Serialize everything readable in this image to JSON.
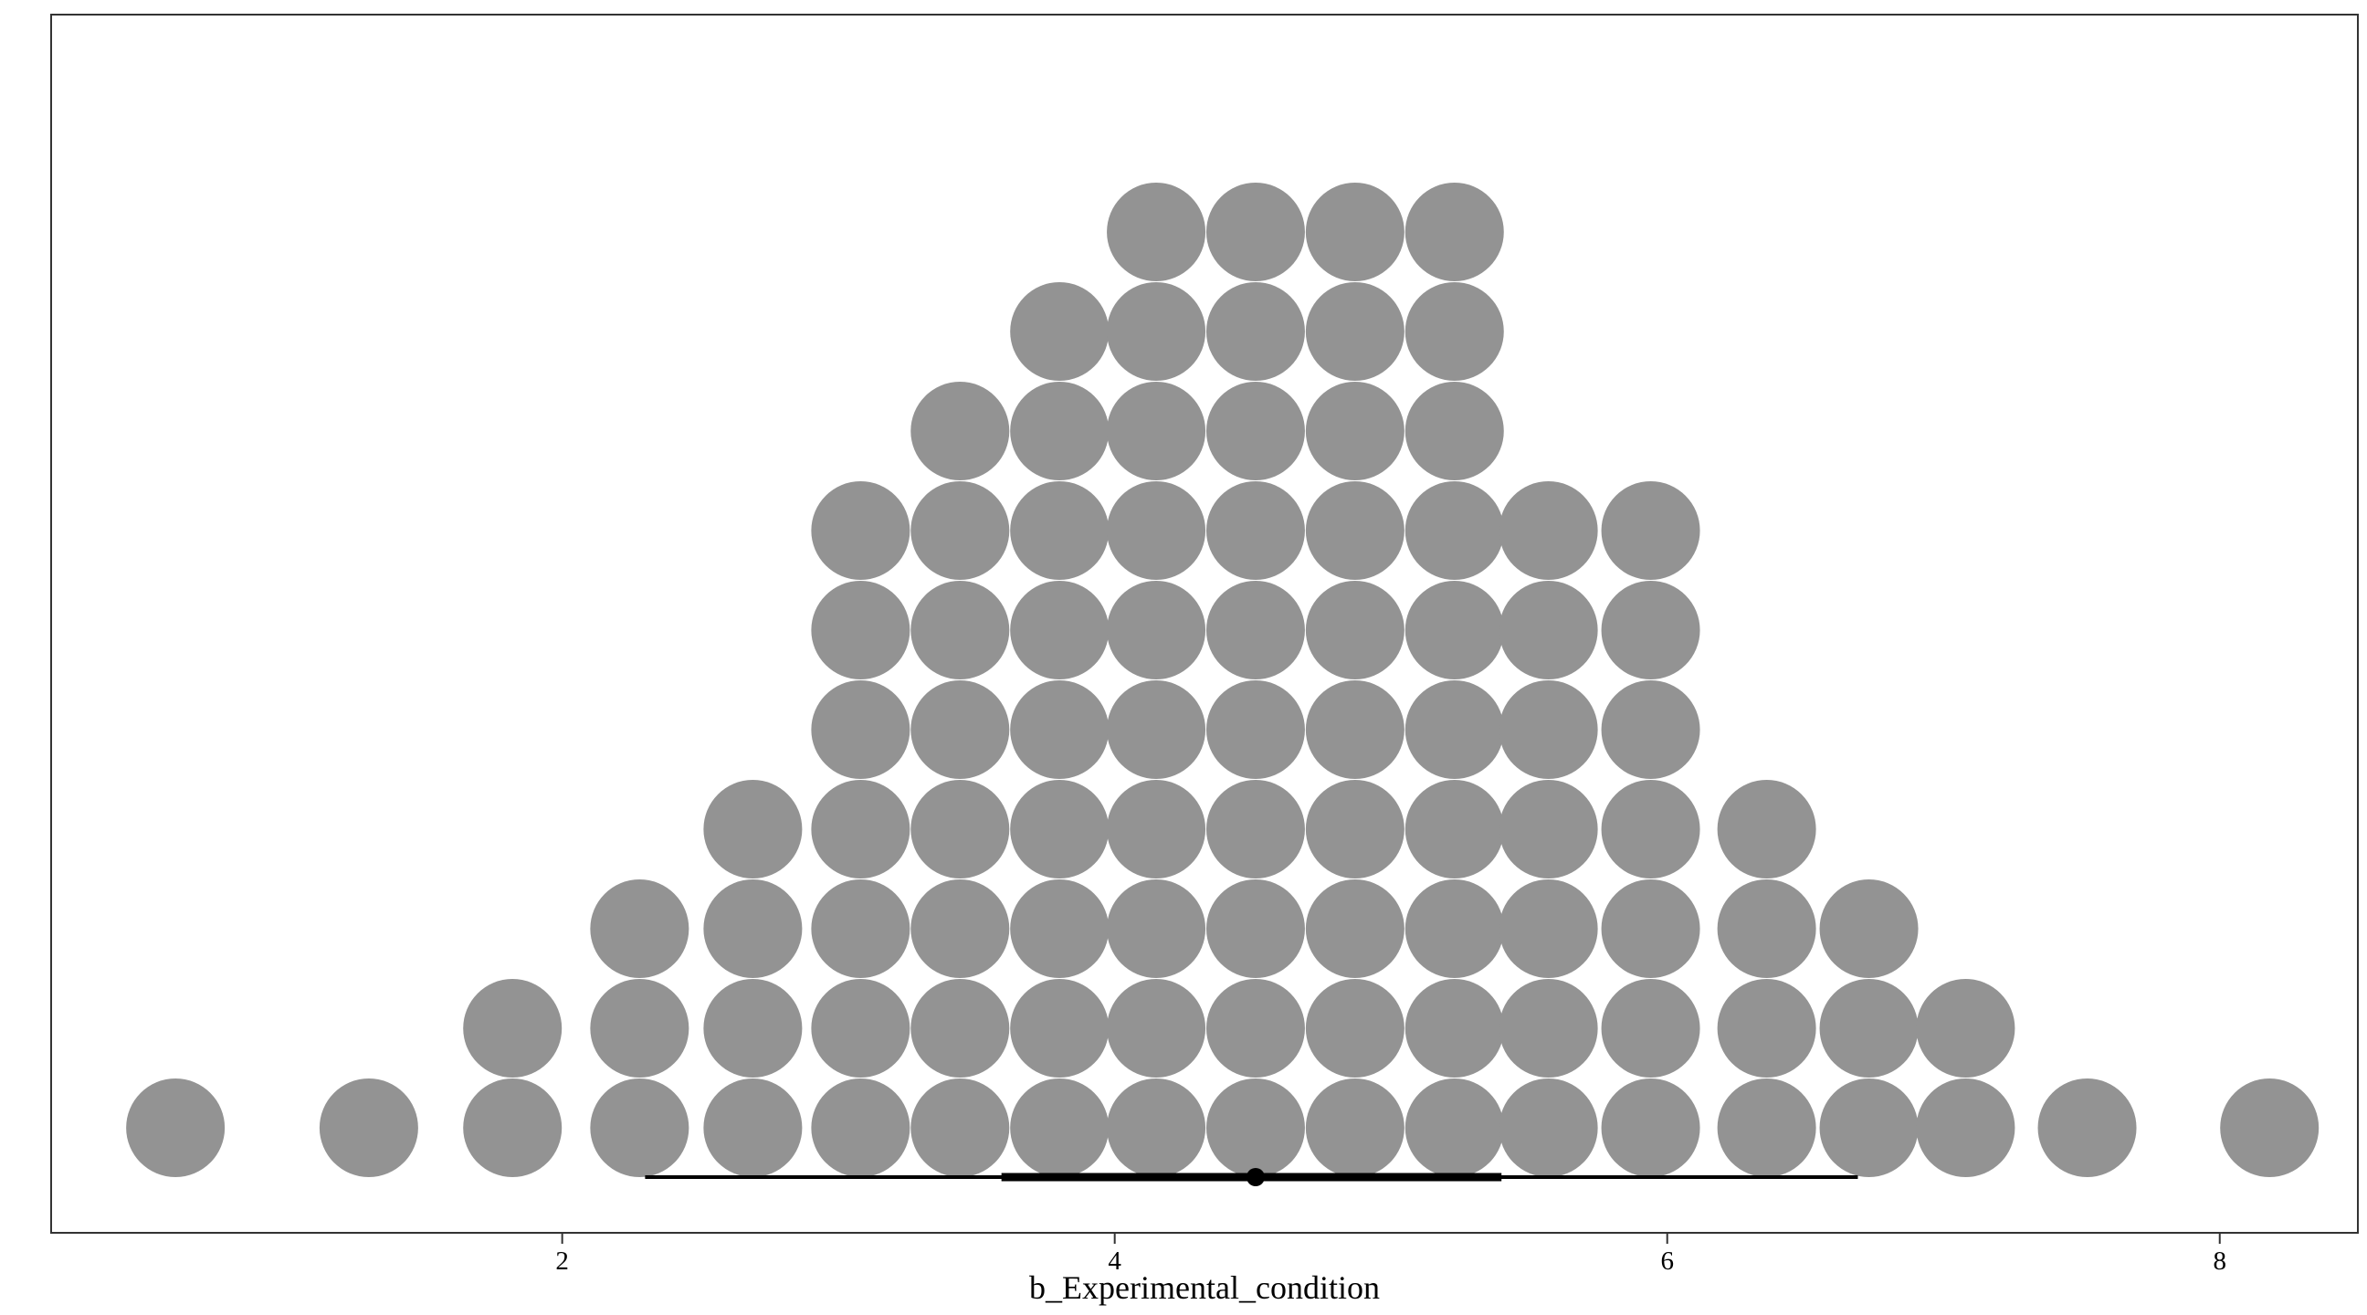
{
  "chart_data": {
    "type": "dotplot",
    "xlabel": "b_Experimental_condition",
    "xlim": [
      0.15,
      8.5
    ],
    "x_ticks": [
      2,
      4,
      6,
      8
    ],
    "x_tick_labels": [
      "2",
      "4",
      "6",
      "8"
    ],
    "grid": false,
    "dot_color": "#939393",
    "interval_color": "#000000",
    "columns": [
      {
        "x": 0.6,
        "count": 1
      },
      {
        "x": 1.3,
        "count": 1
      },
      {
        "x": 1.82,
        "count": 2
      },
      {
        "x": 2.28,
        "count": 3
      },
      {
        "x": 2.69,
        "count": 4
      },
      {
        "x": 3.08,
        "count": 7
      },
      {
        "x": 3.44,
        "count": 8
      },
      {
        "x": 3.8,
        "count": 9
      },
      {
        "x": 4.15,
        "count": 10
      },
      {
        "x": 4.51,
        "count": 10
      },
      {
        "x": 4.87,
        "count": 10
      },
      {
        "x": 5.23,
        "count": 10
      },
      {
        "x": 5.57,
        "count": 7
      },
      {
        "x": 5.94,
        "count": 7
      },
      {
        "x": 6.36,
        "count": 4
      },
      {
        "x": 6.73,
        "count": 3
      },
      {
        "x": 7.08,
        "count": 2
      },
      {
        "x": 7.52,
        "count": 1
      },
      {
        "x": 8.18,
        "count": 1
      }
    ],
    "point_estimate": 4.51,
    "interval_66": [
      3.59,
      5.4
    ],
    "interval_95": [
      2.3,
      6.69
    ]
  }
}
